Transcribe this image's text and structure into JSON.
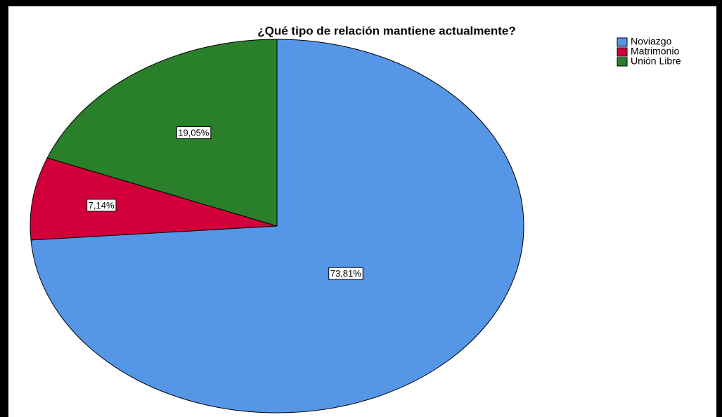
{
  "chart_data": {
    "type": "pie",
    "title": "¿Qué tipo de relación mantiene actualmente?",
    "categories": [
      "Noviazgo",
      "Matrimonio",
      "Unión Libre"
    ],
    "values": [
      73.81,
      7.14,
      19.05
    ],
    "value_labels": [
      "73,81%",
      "7,14%",
      "19,05%"
    ],
    "colors": [
      "#5596e6",
      "#d2003a",
      "#2a7f2a"
    ],
    "legend": "top-right"
  }
}
